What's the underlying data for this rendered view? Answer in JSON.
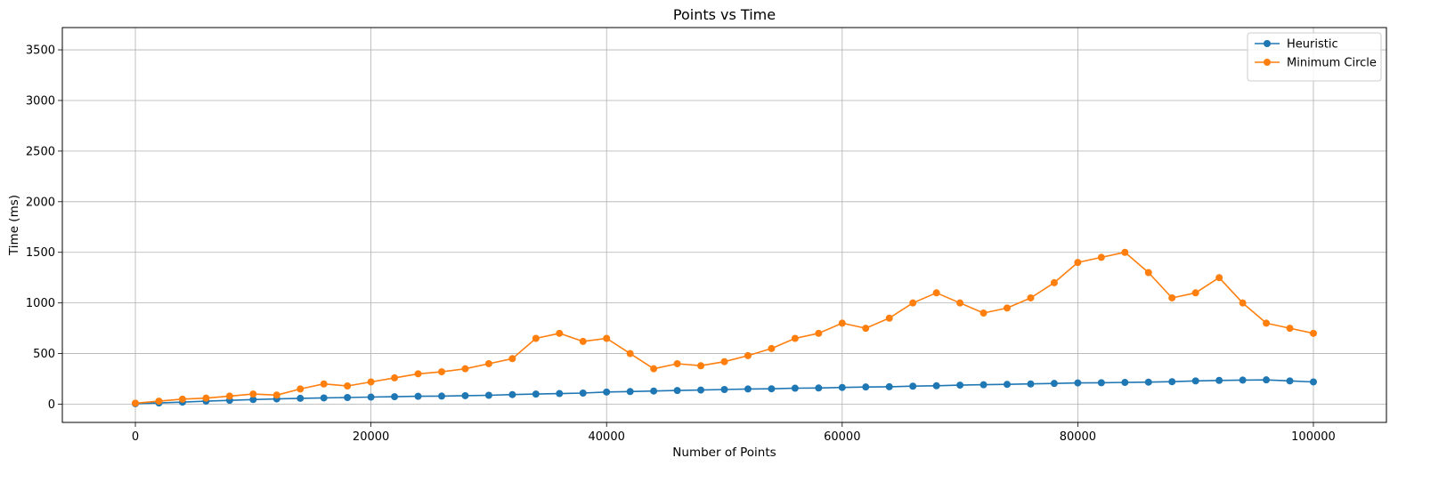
{
  "chart_data": {
    "type": "line",
    "title": "Points vs Time",
    "xlabel": "Number of Points",
    "ylabel": "Time (ms)",
    "xlim": [
      -6200,
      106200
    ],
    "ylim": [
      -180,
      3720
    ],
    "xticks": [
      0,
      20000,
      40000,
      60000,
      80000,
      100000
    ],
    "xtick_labels": [
      "0",
      "20000",
      "40000",
      "60000",
      "80000",
      "100000"
    ],
    "yticks": [
      0,
      500,
      1000,
      1500,
      2000,
      2500,
      3000,
      3500
    ],
    "ytick_labels": [
      "0",
      "500",
      "1000",
      "1500",
      "2000",
      "2500",
      "3000",
      "3500"
    ],
    "grid": true,
    "legend_position": "top-right",
    "series": [
      {
        "name": "Heuristic",
        "color": "#1f77b4",
        "marker": "circle",
        "x": [
          0,
          2000,
          4000,
          6000,
          8000,
          10000,
          12000,
          14000,
          16000,
          18000,
          20000,
          22000,
          24000,
          26000,
          28000,
          30000,
          32000,
          34000,
          36000,
          38000,
          40000,
          42000,
          44000,
          46000,
          48000,
          50000,
          52000,
          54000,
          56000,
          58000,
          60000,
          62000,
          64000,
          66000,
          68000,
          70000,
          72000,
          74000,
          76000,
          78000,
          80000,
          82000,
          84000,
          86000,
          88000,
          90000,
          92000,
          94000,
          96000,
          98000,
          100000
        ],
        "values": [
          5,
          12,
          20,
          30,
          38,
          46,
          52,
          58,
          62,
          66,
          70,
          74,
          78,
          80,
          84,
          88,
          95,
          100,
          105,
          110,
          120,
          125,
          130,
          135,
          140,
          145,
          150,
          152,
          158,
          160,
          165,
          170,
          172,
          178,
          182,
          188,
          192,
          196,
          200,
          205,
          210,
          212,
          215,
          218,
          222,
          230,
          235,
          238,
          240,
          230,
          220
        ]
      },
      {
        "name": "Minimum Circle",
        "color": "#ff7f0e",
        "marker": "circle",
        "x": [
          0,
          2000,
          4000,
          6000,
          8000,
          10000,
          12000,
          14000,
          16000,
          18000,
          20000,
          22000,
          24000,
          26000,
          28000,
          30000,
          32000,
          34000,
          36000,
          38000,
          40000,
          42000,
          44000,
          46000,
          48000,
          50000,
          52000,
          54000,
          56000,
          58000,
          60000,
          62000,
          64000,
          66000,
          68000,
          70000,
          72000,
          74000,
          76000,
          78000,
          80000,
          82000,
          84000,
          86000,
          88000,
          90000,
          92000,
          94000,
          96000,
          98000,
          100000
        ],
        "values": [
          10,
          30,
          50,
          60,
          80,
          100,
          90,
          150,
          200,
          180,
          220,
          260,
          300,
          320,
          350,
          400,
          450,
          650,
          700,
          620,
          650,
          500,
          350,
          400,
          380,
          420,
          480,
          550,
          650,
          700,
          800,
          750,
          850,
          1000,
          1100,
          1000,
          900,
          950,
          1050,
          1200,
          1400,
          1450,
          1500,
          1300,
          1050,
          1100,
          1250,
          1000,
          800,
          750,
          700
        ]
      }
    ],
    "annotations": []
  }
}
